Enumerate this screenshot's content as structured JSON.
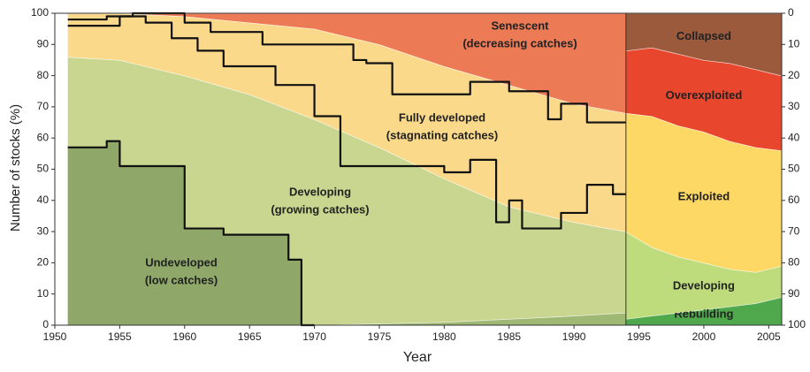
{
  "chart_data": [
    {
      "type": "area",
      "x_label": "Year",
      "y_label": "Number of stocks (%)",
      "xlim": [
        1950,
        2006
      ],
      "xticks": [
        1950,
        1955,
        1960,
        1965,
        1970,
        1975,
        1980,
        1985,
        1990,
        1995,
        2000,
        2005
      ],
      "ylim": [
        0,
        100
      ],
      "yticks": [
        0,
        10,
        20,
        30,
        40,
        50,
        60,
        70,
        80,
        90,
        100
      ],
      "x": [
        1951,
        1955,
        1960,
        1965,
        1970,
        1975,
        1980,
        1985,
        1990,
        1994
      ],
      "series": [
        {
          "color": "#9fb874",
          "values": [
            0,
            0,
            0,
            0,
            0,
            0.5,
            1,
            2,
            3,
            4
          ]
        },
        {
          "color": "#c9d68f",
          "values": [
            86,
            85,
            80,
            74,
            66,
            56.5,
            46,
            36,
            30,
            26
          ]
        },
        {
          "color": "#fbd98a",
          "values": [
            14,
            15,
            19,
            23,
            29,
            33,
            36,
            39,
            38,
            38
          ]
        },
        {
          "color": "#ec7a55",
          "values": [
            0,
            0,
            1,
            3,
            5,
            10,
            17,
            23,
            29,
            32
          ]
        }
      ],
      "undeveloped_fill": "#8fa86a",
      "steps": [
        {
          "x": [
            1951,
            1954,
            1955,
            1960,
            1963,
            1968,
            1969,
            1970
          ],
          "values": [
            57,
            59,
            51,
            31,
            29,
            21,
            0,
            0
          ]
        },
        {
          "x": [
            1951,
            1955,
            1957,
            1959,
            1961,
            1963,
            1967,
            1970,
            1972,
            1980,
            1982,
            1984,
            1985,
            1986,
            1989,
            1991,
            1993,
            1994
          ],
          "values": [
            96,
            99,
            97,
            92,
            88,
            83,
            77,
            67,
            51,
            49,
            53,
            33,
            40,
            31,
            36,
            45,
            42,
            42
          ]
        },
        {
          "x": [
            1951,
            1954,
            1956,
            1960,
            1962,
            1966,
            1973,
            1974,
            1976,
            1982,
            1985,
            1988,
            1989,
            1991,
            1994
          ],
          "values": [
            98,
            99,
            100,
            97,
            94,
            90,
            85,
            84,
            74,
            78,
            75,
            66,
            71,
            65,
            65
          ]
        }
      ],
      "step_color": "#111111",
      "annotations": [
        {
          "text": [
            "Undeveloped",
            "(low catches)"
          ]
        },
        {
          "text": [
            "Developing",
            "(growing catches)"
          ]
        },
        {
          "text": [
            "Fully developed",
            "(stagnating catches)"
          ]
        },
        {
          "text": [
            "Senescent",
            "(decreasing catches)"
          ]
        }
      ]
    },
    {
      "type": "area",
      "y2lim": [
        100,
        0
      ],
      "y2ticks": [
        0,
        10,
        20,
        30,
        40,
        50,
        60,
        70,
        80,
        90,
        100
      ],
      "x": [
        1994,
        1996,
        1998,
        2000,
        2002,
        2004,
        2006
      ],
      "series": [
        {
          "name": "Rebuilding",
          "color": "#4fa94c",
          "values": [
            2,
            3,
            4,
            5,
            6,
            7,
            9
          ]
        },
        {
          "name": "Developing",
          "color": "#bfdc7c",
          "values": [
            28,
            22,
            18,
            15,
            12,
            10,
            10
          ]
        },
        {
          "name": "Exploited",
          "color": "#fdd865",
          "values": [
            38,
            42,
            42,
            42,
            41,
            40,
            37
          ]
        },
        {
          "name": "Overexploited",
          "color": "#e8462d",
          "values": [
            20,
            22,
            23,
            23,
            25,
            25,
            24
          ]
        },
        {
          "name": "Collapsed",
          "color": "#9b5a3c",
          "values": [
            12,
            11,
            13,
            15,
            16,
            18,
            20
          ]
        }
      ]
    }
  ]
}
